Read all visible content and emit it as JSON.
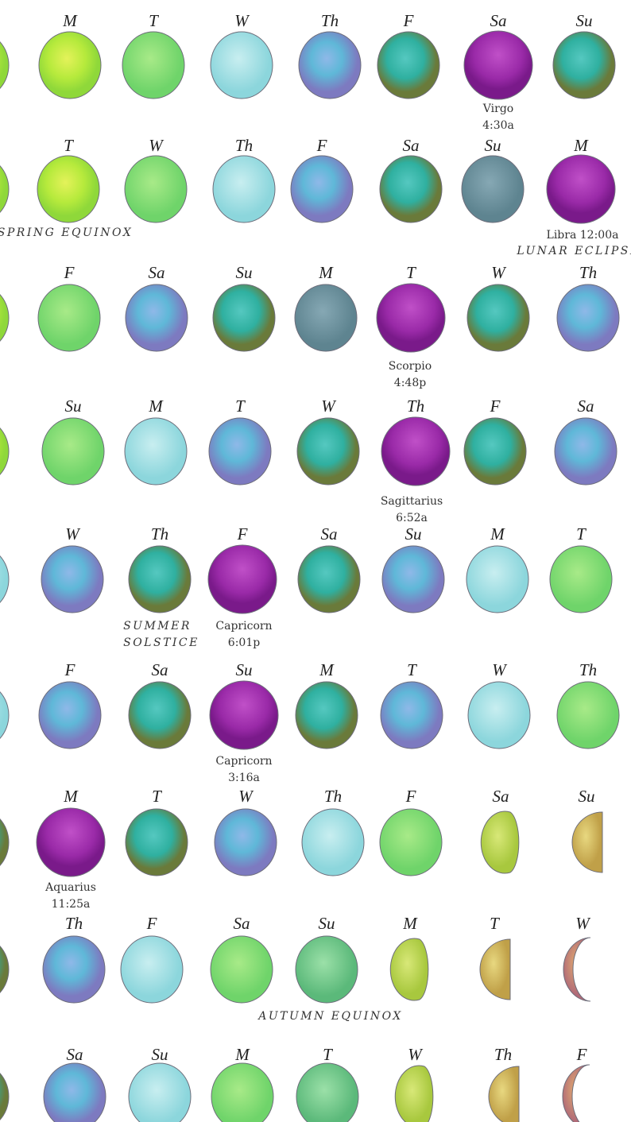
{
  "rows": [
    {
      "days": [
        "M",
        "T",
        "W",
        "Th",
        "F",
        "Sa",
        "Su"
      ],
      "notes": [
        "Virgo",
        "4:30a"
      ]
    },
    {
      "days": [
        "T",
        "W",
        "Th",
        "F",
        "Sa",
        "Su",
        "M"
      ],
      "notes": [
        "SPRING EQUINOX",
        "Libra 12:00a",
        "LUNAR ECLIPSE"
      ]
    },
    {
      "days": [
        "F",
        "Sa",
        "Su",
        "M",
        "T",
        "W",
        "Th"
      ],
      "notes": [
        "Scorpio",
        "4:48p"
      ]
    },
    {
      "days": [
        "Su",
        "M",
        "T",
        "W",
        "Th",
        "F",
        "Sa"
      ],
      "notes": [
        "Sagittarius",
        "6:52a"
      ]
    },
    {
      "days": [
        "W",
        "Th",
        "F",
        "Sa",
        "Su",
        "M",
        "T"
      ],
      "notes": [
        "SUMMER",
        "SOLSTICE",
        "Capricorn",
        "6:01p"
      ]
    },
    {
      "days": [
        "F",
        "Sa",
        "Su",
        "M",
        "T",
        "W",
        "Th"
      ],
      "notes": [
        "Capricorn",
        "3:16a"
      ]
    },
    {
      "days": [
        "M",
        "T",
        "W",
        "Th",
        "F",
        "Sa",
        "Su"
      ],
      "notes": [
        "Aquarius",
        "11:25a"
      ]
    },
    {
      "days": [
        "Th",
        "F",
        "Sa",
        "Su",
        "M",
        "T",
        "W"
      ],
      "notes": [
        "AUTUMN EQUINOX"
      ]
    },
    {
      "days": [
        "Sa",
        "Su",
        "M",
        "T",
        "W",
        "Th",
        "F"
      ],
      "notes": []
    }
  ]
}
